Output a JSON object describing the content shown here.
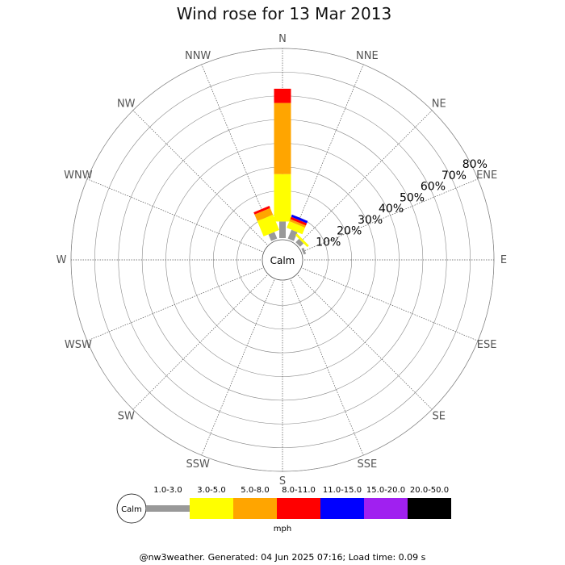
{
  "title": "Wind rose for 13 Mar 2013",
  "footer": "@nw3weather. Generated: 04 Jun 2025 07:16; Load time: 0.09 s",
  "calm_label": "Calm",
  "unit_label": "mph",
  "directions": [
    "N",
    "NNE",
    "NE",
    "ENE",
    "E",
    "ESE",
    "SE",
    "SSE",
    "S",
    "SSW",
    "SW",
    "WSW",
    "W",
    "WNW",
    "NW",
    "NNW"
  ],
  "ring_labels": [
    "10%",
    "20%",
    "30%",
    "40%",
    "50%",
    "60%",
    "70%",
    "80%"
  ],
  "colors": {
    "speed_bins": [
      "#999999",
      "#ffff00",
      "#ffa500",
      "#ff0000",
      "#0000ff",
      "#a020f0",
      "#000000"
    ],
    "grid": "#888888",
    "background": "#ffffff"
  },
  "chart_data": {
    "type": "wind-rose",
    "title": "Wind rose for 13 Mar 2013",
    "unit": "mph",
    "radial_max_percent": 80,
    "rings_percent": [
      10,
      20,
      30,
      40,
      50,
      60,
      70,
      80
    ],
    "speed_bins": [
      "1.0-3.0",
      "3.0-5.0",
      "5.0-8.0",
      "8.0-11.0",
      "11.0-15.0",
      "15.0-20.0",
      "20.0-50.0"
    ],
    "directions": [
      "N",
      "NNE",
      "NE",
      "ENE",
      "E",
      "ESE",
      "SE",
      "SSE",
      "S",
      "SSW",
      "SW",
      "WSW",
      "W",
      "WNW",
      "NW",
      "NNW"
    ],
    "series": [
      {
        "name": "1.0-3.0",
        "values": [
          7,
          4,
          2,
          1,
          0,
          0,
          0,
          0,
          0,
          0,
          0,
          0,
          0,
          0,
          0,
          3
        ]
      },
      {
        "name": "3.0-5.0",
        "values": [
          20,
          3,
          1,
          0,
          0,
          0,
          0,
          0,
          0,
          0,
          0,
          0,
          0,
          0,
          0,
          7
        ]
      },
      {
        "name": "5.0-8.0",
        "values": [
          30,
          1,
          0,
          0,
          0,
          0,
          0,
          0,
          0,
          0,
          0,
          0,
          0,
          0,
          0,
          3
        ]
      },
      {
        "name": "8.0-11.0",
        "values": [
          6,
          1,
          0,
          0,
          0,
          0,
          0,
          0,
          0,
          0,
          0,
          0,
          0,
          0,
          0,
          1
        ]
      },
      {
        "name": "11.0-15.0",
        "values": [
          0,
          1,
          0,
          0,
          0,
          0,
          0,
          0,
          0,
          0,
          0,
          0,
          0,
          0,
          0,
          0
        ]
      },
      {
        "name": "15.0-20.0",
        "values": [
          0,
          0,
          0,
          0,
          0,
          0,
          0,
          0,
          0,
          0,
          0,
          0,
          0,
          0,
          0,
          0
        ]
      },
      {
        "name": "20.0-50.0",
        "values": [
          0,
          0,
          0,
          0,
          0,
          0,
          0,
          0,
          0,
          0,
          0,
          0,
          0,
          0,
          0,
          0
        ]
      }
    ]
  }
}
